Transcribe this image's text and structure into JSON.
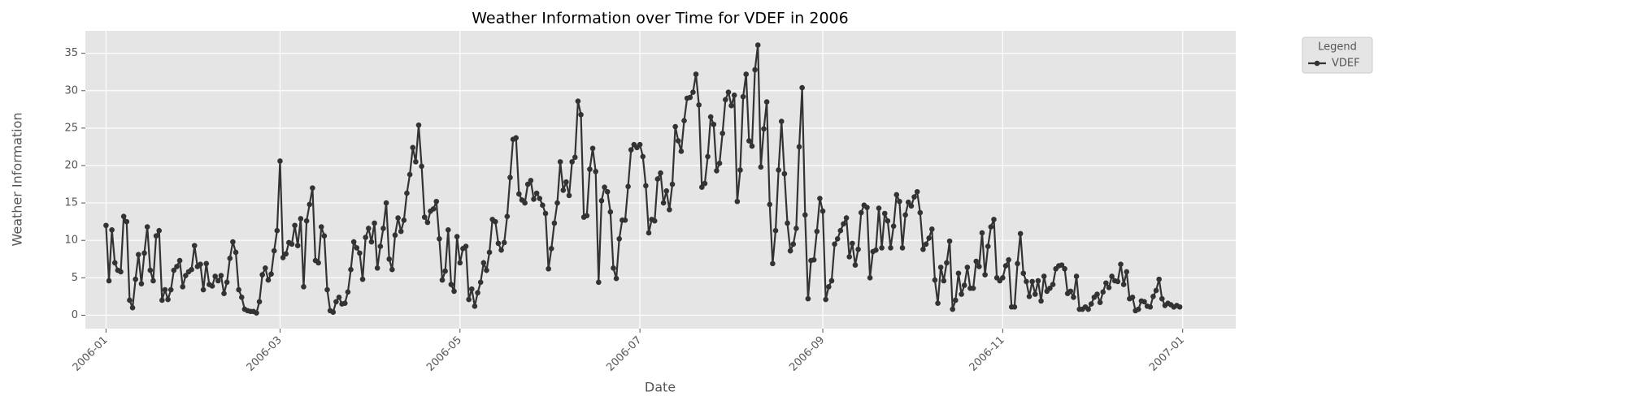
{
  "chart_data": {
    "type": "line",
    "title": "Weather Information over Time for VDEF in 2006",
    "xlabel": "Date",
    "ylabel": "Weather Information",
    "legend_title": "Legend",
    "legend": "upper right outside",
    "grid": true,
    "xlim": [
      "2005-12-25",
      "2007-01-19"
    ],
    "xticks": [
      {
        "value": "2006-01-01",
        "label": "2006-01"
      },
      {
        "value": "2006-03-01",
        "label": "2006-03"
      },
      {
        "value": "2006-05-01",
        "label": "2006-05"
      },
      {
        "value": "2006-07-01",
        "label": "2006-07"
      },
      {
        "value": "2006-09-01",
        "label": "2006-09"
      },
      {
        "value": "2006-11-01",
        "label": "2006-11"
      },
      {
        "value": "2007-01-01",
        "label": "2007-01"
      }
    ],
    "ylim": [
      -1.8,
      38
    ],
    "yticks": [
      0,
      5,
      10,
      15,
      20,
      25,
      30,
      35
    ],
    "x": [
      "2006-01-01",
      "2006-01-02",
      "2006-01-03",
      "2006-01-04",
      "2006-01-05",
      "2006-01-06",
      "2006-01-07",
      "2006-01-08",
      "2006-01-09",
      "2006-01-10",
      "2006-01-11",
      "2006-01-12",
      "2006-01-13",
      "2006-01-14",
      "2006-01-15",
      "2006-01-16",
      "2006-01-17",
      "2006-01-18",
      "2006-01-19",
      "2006-01-20",
      "2006-01-21",
      "2006-01-22",
      "2006-01-23",
      "2006-01-24",
      "2006-01-25",
      "2006-01-26",
      "2006-01-27",
      "2006-01-28",
      "2006-01-29",
      "2006-01-30",
      "2006-01-31",
      "2006-02-01",
      "2006-02-02",
      "2006-02-03",
      "2006-02-04",
      "2006-02-05",
      "2006-02-06",
      "2006-02-07",
      "2006-02-08",
      "2006-02-09",
      "2006-02-10",
      "2006-02-11",
      "2006-02-12",
      "2006-02-13",
      "2006-02-14",
      "2006-02-15",
      "2006-02-16",
      "2006-02-17",
      "2006-02-18",
      "2006-02-19",
      "2006-02-20",
      "2006-02-21",
      "2006-02-22",
      "2006-02-23",
      "2006-02-24",
      "2006-02-25",
      "2006-02-26",
      "2006-02-27",
      "2006-02-28",
      "2006-03-01",
      "2006-03-02",
      "2006-03-03",
      "2006-03-04",
      "2006-03-05",
      "2006-03-06",
      "2006-03-07",
      "2006-03-08",
      "2006-03-09",
      "2006-03-10",
      "2006-03-11",
      "2006-03-12",
      "2006-03-13",
      "2006-03-14",
      "2006-03-15",
      "2006-03-16",
      "2006-03-17",
      "2006-03-18",
      "2006-03-19",
      "2006-03-20",
      "2006-03-21",
      "2006-03-22",
      "2006-03-23",
      "2006-03-24",
      "2006-03-25",
      "2006-03-26",
      "2006-03-27",
      "2006-03-28",
      "2006-03-29",
      "2006-03-30",
      "2006-03-31",
      "2006-04-01",
      "2006-04-02",
      "2006-04-03",
      "2006-04-04",
      "2006-04-05",
      "2006-04-06",
      "2006-04-07",
      "2006-04-08",
      "2006-04-09",
      "2006-04-10",
      "2006-04-11",
      "2006-04-12",
      "2006-04-13",
      "2006-04-14",
      "2006-04-15",
      "2006-04-16",
      "2006-04-17",
      "2006-04-18",
      "2006-04-19",
      "2006-04-20",
      "2006-04-21",
      "2006-04-22",
      "2006-04-23",
      "2006-04-24",
      "2006-04-25",
      "2006-04-26",
      "2006-04-27",
      "2006-04-28",
      "2006-04-29",
      "2006-04-30",
      "2006-05-01",
      "2006-05-02",
      "2006-05-03",
      "2006-05-04",
      "2006-05-05",
      "2006-05-06",
      "2006-05-07",
      "2006-05-08",
      "2006-05-09",
      "2006-05-10",
      "2006-05-11",
      "2006-05-12",
      "2006-05-13",
      "2006-05-14",
      "2006-05-15",
      "2006-05-16",
      "2006-05-17",
      "2006-05-18",
      "2006-05-19",
      "2006-05-20",
      "2006-05-21",
      "2006-05-22",
      "2006-05-23",
      "2006-05-24",
      "2006-05-25",
      "2006-05-26",
      "2006-05-27",
      "2006-05-28",
      "2006-05-29",
      "2006-05-30",
      "2006-05-31",
      "2006-06-01",
      "2006-06-02",
      "2006-06-03",
      "2006-06-04",
      "2006-06-05",
      "2006-06-06",
      "2006-06-07",
      "2006-06-08",
      "2006-06-09",
      "2006-06-10",
      "2006-06-11",
      "2006-06-12",
      "2006-06-13",
      "2006-06-14",
      "2006-06-15",
      "2006-06-16",
      "2006-06-17",
      "2006-06-18",
      "2006-06-19",
      "2006-06-20",
      "2006-06-21",
      "2006-06-22",
      "2006-06-23",
      "2006-06-24",
      "2006-06-25",
      "2006-06-26",
      "2006-06-27",
      "2006-06-28",
      "2006-06-29",
      "2006-06-30",
      "2006-07-01",
      "2006-07-02",
      "2006-07-03",
      "2006-07-04",
      "2006-07-05",
      "2006-07-06",
      "2006-07-07",
      "2006-07-08",
      "2006-07-09",
      "2006-07-10",
      "2006-07-11",
      "2006-07-12",
      "2006-07-13",
      "2006-07-14",
      "2006-07-15",
      "2006-07-16",
      "2006-07-17",
      "2006-07-18",
      "2006-07-19",
      "2006-07-20",
      "2006-07-21",
      "2006-07-22",
      "2006-07-23",
      "2006-07-24",
      "2006-07-25",
      "2006-07-26",
      "2006-07-27",
      "2006-07-28",
      "2006-07-29",
      "2006-07-30",
      "2006-07-31",
      "2006-08-01",
      "2006-08-02",
      "2006-08-03",
      "2006-08-04",
      "2006-08-05",
      "2006-08-06",
      "2006-08-07",
      "2006-08-08",
      "2006-08-09",
      "2006-08-10",
      "2006-08-11",
      "2006-08-12",
      "2006-08-13",
      "2006-08-14",
      "2006-08-15",
      "2006-08-16",
      "2006-08-17",
      "2006-08-18",
      "2006-08-19",
      "2006-08-20",
      "2006-08-21",
      "2006-08-22",
      "2006-08-23",
      "2006-08-24",
      "2006-08-25",
      "2006-08-26",
      "2006-08-27",
      "2006-08-28",
      "2006-08-29",
      "2006-08-30",
      "2006-08-31",
      "2006-09-01",
      "2006-09-02",
      "2006-09-03",
      "2006-09-04",
      "2006-09-05",
      "2006-09-06",
      "2006-09-07",
      "2006-09-08",
      "2006-09-09",
      "2006-09-10",
      "2006-09-11",
      "2006-09-12",
      "2006-09-13",
      "2006-09-14",
      "2006-09-15",
      "2006-09-16",
      "2006-09-17",
      "2006-09-18",
      "2006-09-19",
      "2006-09-20",
      "2006-09-21",
      "2006-09-22",
      "2006-09-23",
      "2006-09-24",
      "2006-09-25",
      "2006-09-26",
      "2006-09-27",
      "2006-09-28",
      "2006-09-29",
      "2006-09-30",
      "2006-10-01",
      "2006-10-02",
      "2006-10-03",
      "2006-10-04",
      "2006-10-05",
      "2006-10-06",
      "2006-10-07",
      "2006-10-08",
      "2006-10-09",
      "2006-10-10",
      "2006-10-11",
      "2006-10-12",
      "2006-10-13",
      "2006-10-14",
      "2006-10-15",
      "2006-10-16",
      "2006-10-17",
      "2006-10-18",
      "2006-10-19",
      "2006-10-20",
      "2006-10-21",
      "2006-10-22",
      "2006-10-23",
      "2006-10-24",
      "2006-10-25",
      "2006-10-26",
      "2006-10-27",
      "2006-10-28",
      "2006-10-29",
      "2006-10-30",
      "2006-10-31",
      "2006-11-01",
      "2006-11-02",
      "2006-11-03",
      "2006-11-04",
      "2006-11-05",
      "2006-11-06",
      "2006-11-07",
      "2006-11-08",
      "2006-11-09",
      "2006-11-10",
      "2006-11-11",
      "2006-11-12",
      "2006-11-13",
      "2006-11-14",
      "2006-11-15",
      "2006-11-16",
      "2006-11-17",
      "2006-11-18",
      "2006-11-19",
      "2006-11-20",
      "2006-11-21",
      "2006-11-22",
      "2006-11-23",
      "2006-11-24",
      "2006-11-25",
      "2006-11-26",
      "2006-11-27",
      "2006-11-28",
      "2006-11-29",
      "2006-11-30",
      "2006-12-01",
      "2006-12-02",
      "2006-12-03",
      "2006-12-04",
      "2006-12-05",
      "2006-12-06",
      "2006-12-07",
      "2006-12-08",
      "2006-12-09",
      "2006-12-10",
      "2006-12-11",
      "2006-12-12",
      "2006-12-13",
      "2006-12-14",
      "2006-12-15",
      "2006-12-16",
      "2006-12-17",
      "2006-12-18",
      "2006-12-19",
      "2006-12-20",
      "2006-12-21",
      "2006-12-22",
      "2006-12-23",
      "2006-12-24",
      "2006-12-25",
      "2006-12-26",
      "2006-12-27",
      "2006-12-28",
      "2006-12-29",
      "2006-12-30",
      "2006-12-31"
    ],
    "series": [
      {
        "name": "VDEF",
        "color": "#333333",
        "values": [
          12,
          4.6,
          11.4,
          7,
          6,
          5.8,
          13.2,
          12.5,
          2,
          1,
          4.8,
          8.1,
          4.2,
          8.3,
          11.8,
          6,
          4.6,
          10.6,
          11.3,
          2,
          3.4,
          2.1,
          3.4,
          6,
          6.5,
          7.3,
          3.8,
          5.3,
          5.8,
          6.1,
          9.3,
          6.5,
          6.8,
          3.4,
          6.9,
          4.1,
          3.9,
          5.2,
          4.6,
          5.3,
          2.9,
          4.4,
          7.6,
          9.8,
          8.4,
          3.4,
          2.4,
          0.8,
          0.6,
          0.5,
          0.5,
          0.3,
          1.8,
          5.4,
          6.3,
          4.7,
          5.5,
          8.6,
          11.3,
          20.6,
          7.7,
          8.2,
          9.7,
          9.5,
          12,
          9.3,
          12.9,
          3.8,
          12.6,
          14.8,
          17,
          7.3,
          7,
          11.8,
          10.6,
          3.4,
          0.6,
          0.4,
          1.8,
          2.4,
          1.5,
          1.6,
          3.1,
          6.1,
          9.8,
          9,
          8.3,
          4.8,
          10.4,
          11.6,
          9.8,
          12.3,
          6.3,
          9.2,
          11.6,
          15,
          7.5,
          6.1,
          10.7,
          13,
          11.2,
          12.7,
          16.3,
          18.8,
          22.4,
          20.5,
          25.4,
          19.9,
          13.1,
          12.4,
          13.9,
          14.2,
          15.2,
          10.2,
          4.7,
          5.9,
          11.4,
          4.1,
          3.2,
          10.5,
          7,
          8.9,
          9.2,
          2.1,
          3.5,
          1.2,
          3,
          4.4,
          7,
          6,
          8.4,
          12.8,
          12.5,
          9.6,
          8.7,
          9.7,
          13.2,
          18.4,
          23.5,
          23.7,
          16.2,
          15.4,
          15,
          17.5,
          18,
          15.5,
          16.3,
          15.6,
          14.7,
          13.6,
          6.2,
          8.9,
          12.3,
          15,
          20.5,
          16.7,
          17.8,
          16,
          20.5,
          21.1,
          28.6,
          26.8,
          13.1,
          13.3,
          19.5,
          22.3,
          19.2,
          4.4,
          15.3,
          17.1,
          16.5,
          13.8,
          6.3,
          4.9,
          10.2,
          12.7,
          12.7,
          17.2,
          22.1,
          22.8,
          22.4,
          22.8,
          21.2,
          17.3,
          11,
          12.8,
          12.6,
          18.2,
          19,
          15,
          16.6,
          14.1,
          17.5,
          25.2,
          23.3,
          21.9,
          26,
          29,
          29.1,
          29.8,
          32.2,
          28.1,
          17.1,
          17.6,
          21.2,
          26.5,
          25.5,
          19.3,
          20.3,
          24.3,
          28.8,
          29.8,
          28,
          29.4,
          15.2,
          19.4,
          29.2,
          32.2,
          23.3,
          22.6,
          32.8,
          36.1,
          19.8,
          24.9,
          28.5,
          14.8,
          6.9,
          11.3,
          19.4,
          25.9,
          18.9,
          12.3,
          8.6,
          9.5,
          11.6,
          22.5,
          30.4,
          13.4,
          2.2,
          7.3,
          7.4,
          11.2,
          15.6,
          13.9,
          2.1,
          3.8,
          4.6,
          9.5,
          10.2,
          11.3,
          12.2,
          13,
          7.8,
          9.6,
          6.7,
          8.8,
          13.7,
          14.7,
          14.4,
          5,
          8.5,
          8.7,
          14.3,
          9,
          13.6,
          12.6,
          9,
          11.9,
          16.1,
          15.2,
          9,
          13.4,
          15.1,
          14.6,
          15.8,
          16.5,
          13.7,
          8.8,
          9.5,
          10.3,
          11.5,
          4.7,
          1.6,
          6.4,
          4.6,
          7,
          9.9,
          0.8,
          2,
          5.6,
          2.8,
          4,
          6.4,
          3.6,
          3.6,
          7.2,
          6.5,
          11,
          5.4,
          9.2,
          11.8,
          12.8,
          5,
          4.6,
          5,
          6.6,
          7.4,
          1.1,
          1.1,
          6.9,
          10.9,
          5.6,
          4.5,
          2.5,
          4.5,
          2.8,
          4.6,
          1.9,
          5.2,
          3.2,
          3.6,
          4.1,
          6.2,
          6.6,
          6.7,
          6.2,
          2.9,
          3.2,
          2.4,
          5.2,
          0.8,
          0.8,
          1.1,
          0.8,
          1.5,
          2.4,
          2.8,
          1.7,
          3.1,
          4.3,
          3.7,
          5.2,
          4.6,
          4.5,
          6.8,
          4.1,
          5.8,
          2.2,
          2.4,
          0.6,
          0.8,
          1.9,
          1.8,
          1.2,
          1.1,
          2.5,
          3.3,
          4.8,
          2.2,
          1.3,
          1.6,
          1.4,
          1.1,
          1.3,
          1.1
        ]
      }
    ]
  }
}
